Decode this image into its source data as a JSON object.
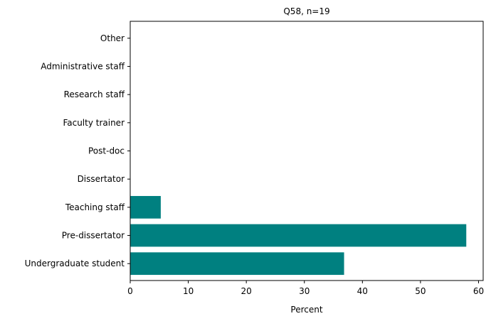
{
  "chart_data": {
    "type": "bar",
    "orientation": "horizontal",
    "title": "Q58, n=19",
    "xlabel": "Percent",
    "ylabel": "",
    "categories": [
      "Undergraduate student",
      "Pre-dissertator",
      "Teaching staff",
      "Dissertator",
      "Post-doc",
      "Faculty trainer",
      "Research staff",
      "Administrative staff",
      "Other"
    ],
    "values": [
      36.84,
      57.89,
      5.26,
      0,
      0,
      0,
      0,
      0,
      0
    ],
    "xlim": [
      0,
      60.8
    ],
    "xticks": [
      0,
      10,
      20,
      30,
      40,
      50,
      60
    ],
    "bar_color": "#008080",
    "grid": false,
    "legend": "none"
  }
}
